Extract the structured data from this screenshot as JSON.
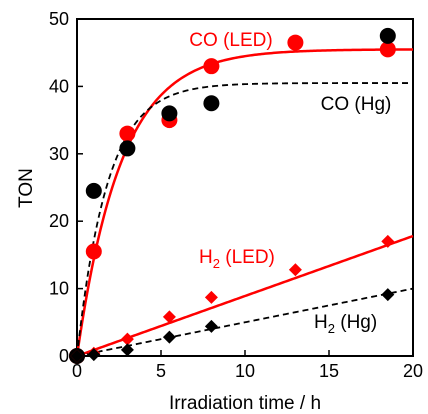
{
  "chart_data": {
    "type": "scatter",
    "xlabel": "Irradiation time / h",
    "ylabel": "TON",
    "xlim": [
      0,
      20
    ],
    "ylim": [
      0,
      50
    ],
    "xticks": [
      "0",
      "5",
      "10",
      "15",
      "20"
    ],
    "yticks": [
      "0",
      "10",
      "20",
      "30",
      "40",
      "50"
    ],
    "grid": false,
    "series": [
      {
        "name": "CO (LED)",
        "marker": "circle",
        "color": "#ff0000",
        "x": [
          0,
          1,
          3,
          5.5,
          8,
          13,
          18.5
        ],
        "y": [
          0,
          15.5,
          33,
          35,
          43,
          46.5,
          45.5
        ]
      },
      {
        "name": "CO (Hg)",
        "marker": "circle",
        "color": "#000000",
        "x": [
          0,
          1,
          3,
          5.5,
          8,
          18.5
        ],
        "y": [
          0,
          24.5,
          30.8,
          36,
          37.5,
          47.5
        ]
      },
      {
        "name": "H2 (LED)",
        "marker": "diamond",
        "color": "#ff0000",
        "x": [
          0,
          1,
          3,
          5.5,
          8,
          13,
          18.5
        ],
        "y": [
          0,
          0.4,
          2.5,
          5.8,
          8.7,
          12.8,
          17
        ]
      },
      {
        "name": "H2 (Hg)",
        "marker": "diamond",
        "color": "#000000",
        "x": [
          0,
          1,
          3,
          5.5,
          8,
          18.5
        ],
        "y": [
          0,
          0.2,
          0.9,
          2.8,
          4.4,
          9.1
        ]
      }
    ],
    "fits": [
      {
        "series": "CO (LED)",
        "style": "solid",
        "color": "#ff0000",
        "amp": 45.5,
        "k": 0.38,
        "linear": 0
      },
      {
        "series": "CO (Hg)",
        "style": "dashed",
        "color": "#000000",
        "amp": 40.5,
        "k": 0.55,
        "linear": 0
      },
      {
        "series": "H2 (LED)",
        "style": "solid",
        "color": "#ff0000",
        "amp": 0,
        "k": 0,
        "linear": 0.89
      },
      {
        "series": "H2 (Hg)",
        "style": "dashed",
        "color": "#000000",
        "amp": 0,
        "k": 0,
        "linear": 0.5
      }
    ],
    "annotations": [
      {
        "text": "CO (LED)",
        "color": "#ff0000"
      },
      {
        "text": "CO (Hg)",
        "color": "#000000"
      },
      {
        "text": "H",
        "sub": "2",
        "rest": " (LED)",
        "color": "#ff0000"
      },
      {
        "text": "H",
        "sub": "2",
        "rest": " (Hg)",
        "color": "#000000"
      }
    ]
  }
}
